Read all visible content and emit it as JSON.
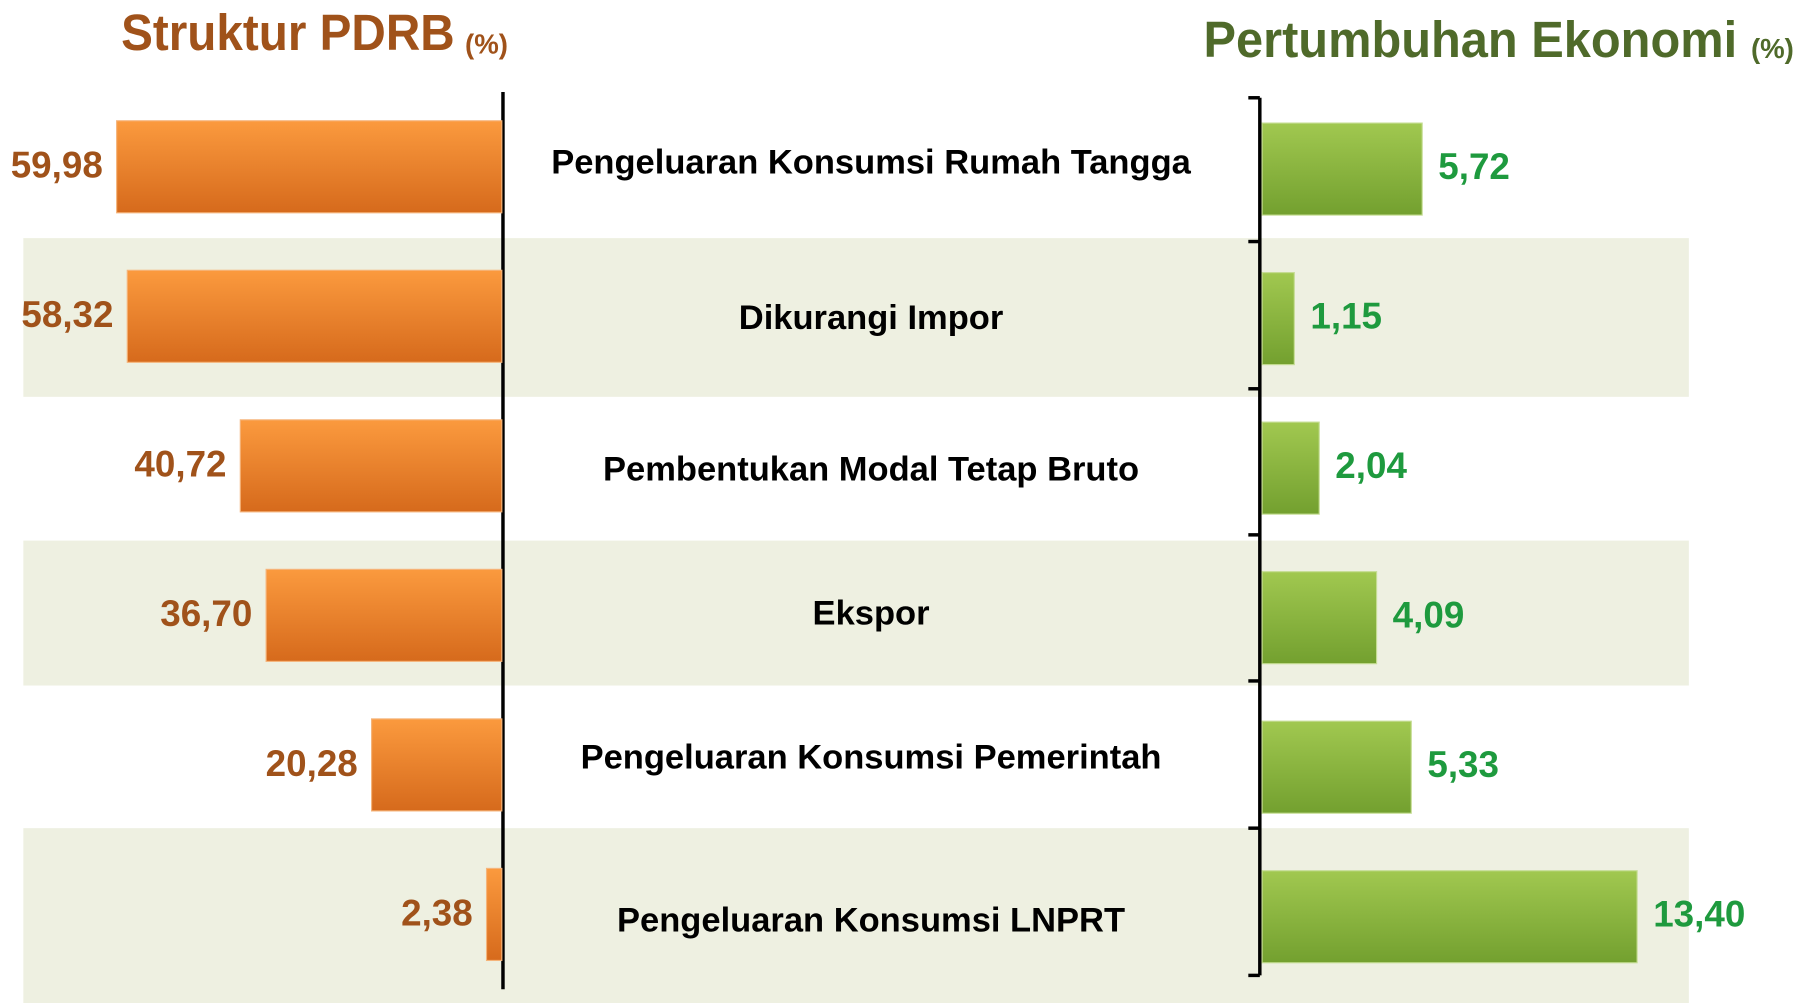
{
  "chart_data": [
    {
      "type": "hbar-left",
      "title": "Struktur PDRB",
      "subtitle": "(%)",
      "categories": [
        "Pengeluaran Konsumsi Rumah Tangga",
        "Dikurangi Impor",
        "Pembentukan Modal Tetap Bruto",
        "Ekspor",
        "Pengeluaran Konsumsi Pemerintah",
        "Pengeluaran Konsumsi LNPRT"
      ],
      "values": [
        59.98,
        58.32,
        40.72,
        36.7,
        20.28,
        2.38
      ],
      "value_labels": [
        "59,98",
        "58,32",
        "40,72",
        "36,70",
        "20,28",
        "2,38"
      ],
      "color": "#f08a2e",
      "xlim": [
        0,
        60
      ]
    },
    {
      "type": "hbar-right",
      "title": "Pertumbuhan Ekonomi",
      "subtitle": "(%)",
      "values": [
        5.72,
        1.15,
        2.04,
        4.09,
        5.33,
        13.4
      ],
      "value_labels": [
        "5,72",
        "1,15",
        "2,04",
        "4,09",
        "5,33",
        "13,40"
      ],
      "color": "#8cb83e",
      "xlim": [
        0,
        13.4
      ]
    }
  ]
}
